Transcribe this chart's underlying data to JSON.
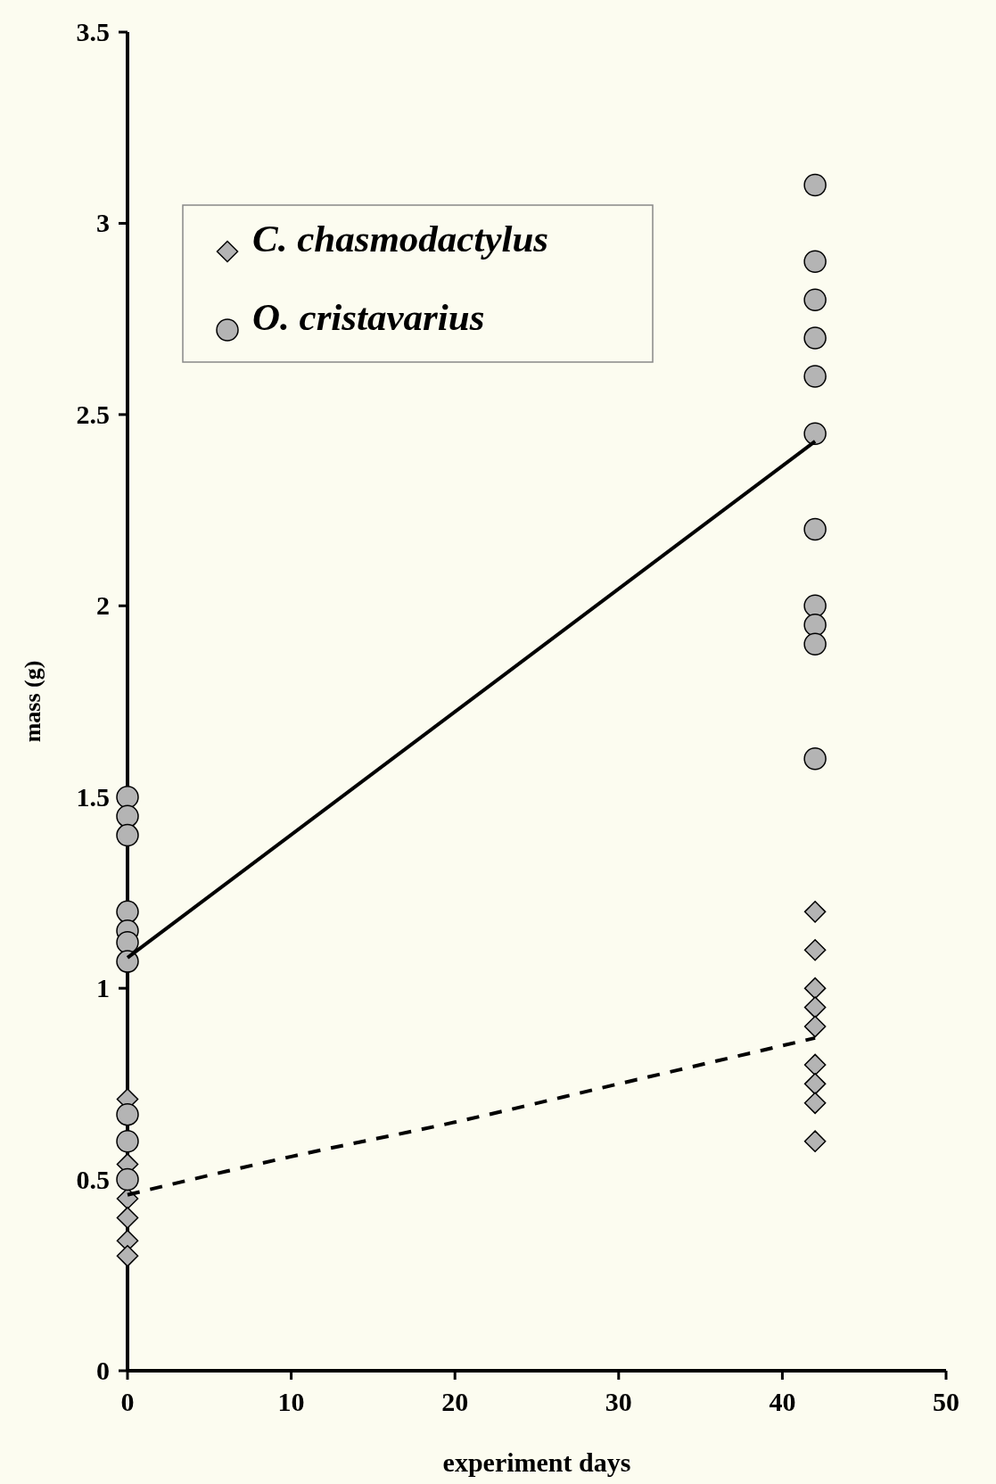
{
  "chart_data": {
    "type": "scatter",
    "xlabel": "experiment days",
    "ylabel": "mass (g)",
    "xlim": [
      0,
      50
    ],
    "xticks": [
      0,
      10,
      20,
      30,
      40,
      50
    ],
    "ylim": [
      0,
      3.5
    ],
    "yticks": [
      0,
      0.5,
      1,
      1.5,
      2,
      2.5,
      3,
      3.5
    ],
    "grid": false,
    "legend": "top left",
    "series": [
      {
        "name": "C. chasmodactylus",
        "marker": "diamond",
        "color": "#b4b4b4",
        "x": [
          0,
          0,
          0,
          0,
          0,
          0,
          42,
          42,
          42,
          42,
          42,
          42,
          42,
          42,
          42
        ],
        "values": [
          0.71,
          0.54,
          0.45,
          0.4,
          0.34,
          0.3,
          1.2,
          1.1,
          1.0,
          0.95,
          0.9,
          0.8,
          0.75,
          0.7,
          0.6
        ]
      },
      {
        "name": "O. cristavarius",
        "marker": "circle",
        "color": "#b4b4b4",
        "x": [
          0,
          0,
          0,
          0,
          0,
          0,
          0,
          0,
          0,
          0,
          42,
          42,
          42,
          42,
          42,
          42,
          42,
          42,
          42,
          42,
          42
        ],
        "values": [
          1.5,
          1.45,
          1.4,
          1.2,
          1.15,
          1.12,
          1.07,
          0.67,
          0.6,
          0.5,
          3.1,
          2.9,
          2.8,
          2.7,
          2.6,
          2.45,
          2.2,
          2.0,
          1.95,
          1.9,
          1.6
        ]
      },
      {
        "type": "line",
        "line_style": "solid",
        "color": "#000000",
        "x": [
          0,
          42
        ],
        "values": [
          1.08,
          2.43
        ]
      },
      {
        "type": "line",
        "line_style": "dashed",
        "color": "#000000",
        "x": [
          0,
          10,
          20,
          30,
          42
        ],
        "values": [
          0.46,
          0.56,
          0.65,
          0.75,
          0.87
        ]
      }
    ]
  }
}
